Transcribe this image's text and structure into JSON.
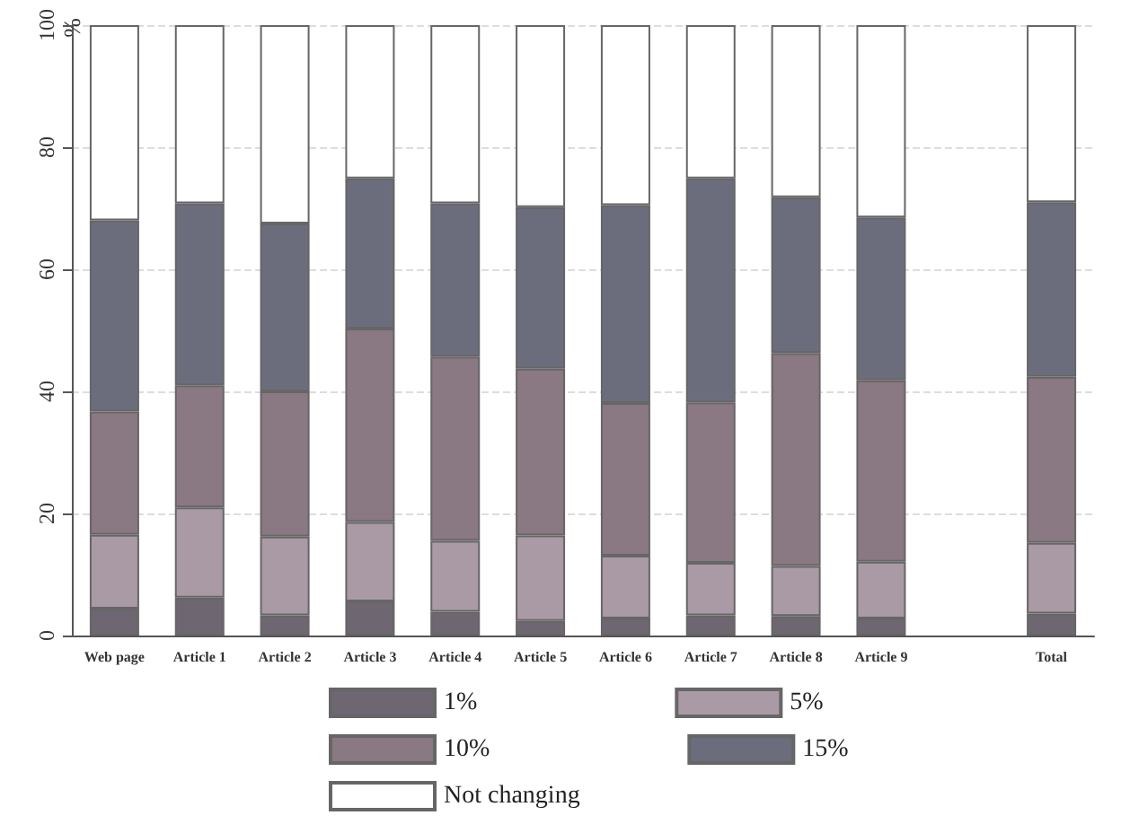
{
  "chart_data": {
    "type": "bar",
    "stacked": true,
    "ylabel": "%",
    "categories": [
      "Web page",
      "Article 1",
      "Article 2",
      "Article 3",
      "Article 4",
      "Article 5",
      "Article 6",
      "Article 7",
      "Article 8",
      "Article 9",
      null,
      "Total"
    ],
    "series": [
      {
        "name": "1%",
        "color": "#6e6670",
        "values": [
          4.4,
          6.2,
          3.3,
          5.6,
          3.9,
          2.4,
          2.8,
          3.3,
          3.2,
          2.8,
          null,
          3.6
        ]
      },
      {
        "name": "5%",
        "color": "#a99aa5",
        "values": [
          12.1,
          14.8,
          12.9,
          13,
          11.6,
          14,
          10.3,
          8.6,
          8.2,
          9.3,
          null,
          11.6
        ]
      },
      {
        "name": "10%",
        "color": "#8a7882",
        "values": [
          20.2,
          20,
          23.8,
          31.7,
          30.2,
          27.3,
          25,
          26.3,
          34.9,
          29.7,
          null,
          27.2
        ]
      },
      {
        "name": "15%",
        "color": "#6c6d7c",
        "values": [
          31.3,
          29.8,
          27.5,
          24.6,
          25.1,
          26.5,
          32.4,
          36.7,
          25.5,
          26.7,
          null,
          28.6
        ]
      },
      {
        "name": "Not changing",
        "color": "#ffffff",
        "values": [
          32,
          29.2,
          32.5,
          25.1,
          29.2,
          29.8,
          29.5,
          25.1,
          28.2,
          31.5,
          null,
          29
        ]
      }
    ],
    "ylim": [
      0,
      100
    ],
    "yticks": [
      0,
      20,
      40,
      60,
      80,
      100
    ],
    "grid": "y",
    "legend": "bottom"
  }
}
